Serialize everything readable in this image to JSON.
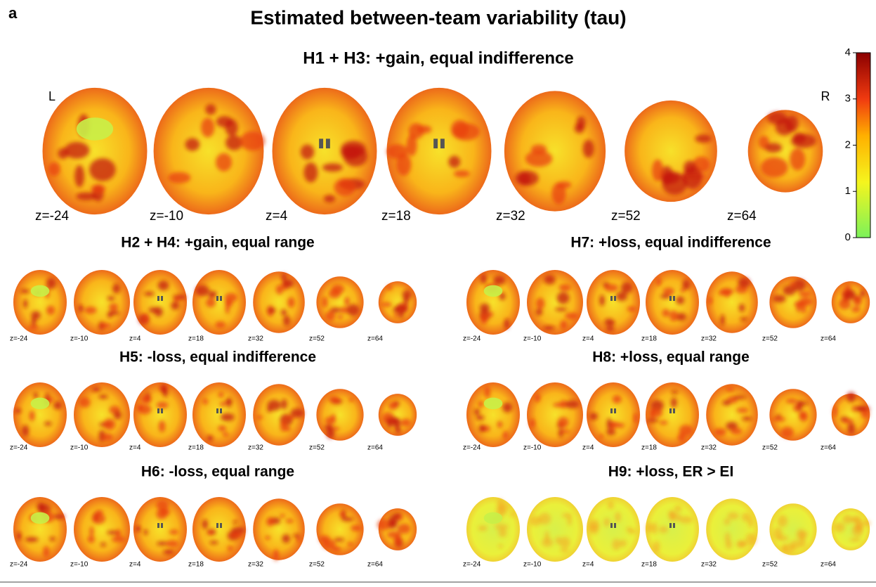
{
  "panel_label": "a",
  "title": "Estimated between-team variability (tau)",
  "main": {
    "title": "H1 + H3: +gain, equal indifference",
    "left": "L",
    "right": "R",
    "slices": [
      "z=-24",
      "z=-10",
      "z=4",
      "z=18",
      "z=32",
      "z=52",
      "z=64"
    ]
  },
  "panels": [
    {
      "title": "H2 + H4: +gain, equal range",
      "slices": [
        "z=-24",
        "z=-10",
        "z=4",
        "z=18",
        "z=32",
        "z=52",
        "z=64"
      ]
    },
    {
      "title": "H7: +loss, equal indifference",
      "slices": [
        "z=-24",
        "z=-10",
        "z=4",
        "z=18",
        "z=32",
        "z=52",
        "z=64"
      ]
    },
    {
      "title": "H5: -loss, equal indifference",
      "slices": [
        "z=-24",
        "z=-10",
        "z=4",
        "z=18",
        "z=32",
        "z=52",
        "z=64"
      ]
    },
    {
      "title": "H8: +loss, equal range",
      "slices": [
        "z=-24",
        "z=-10",
        "z=4",
        "z=18",
        "z=32",
        "z=52",
        "z=64"
      ]
    },
    {
      "title": "H6: -loss, equal range",
      "slices": [
        "z=-24",
        "z=-10",
        "z=4",
        "z=18",
        "z=32",
        "z=52",
        "z=64"
      ]
    },
    {
      "title": "H9: +loss, ER > EI",
      "slices": [
        "z=-24",
        "z=-10",
        "z=4",
        "z=18",
        "z=32",
        "z=52",
        "z=64"
      ]
    }
  ],
  "colorbar": {
    "lim": [
      0,
      4
    ],
    "ticks": [
      0,
      1,
      2,
      3,
      4
    ]
  }
}
